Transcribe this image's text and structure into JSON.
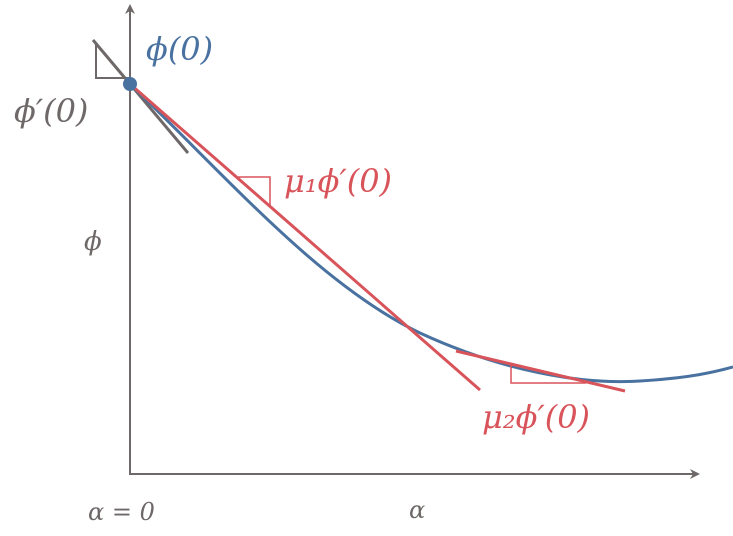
{
  "colors": {
    "axis": "#6e6868",
    "curve": "#4a72a0",
    "red": "#d8545a"
  },
  "labels": {
    "phi0": "ϕ(0)",
    "phi_prime0": "ϕ′(0)",
    "mu1": "μ₁ϕ′(0)",
    "mu2": "μ₂ϕ′(0)",
    "y_axis": "ϕ",
    "x_origin": "α = 0",
    "x_axis": "α"
  }
}
